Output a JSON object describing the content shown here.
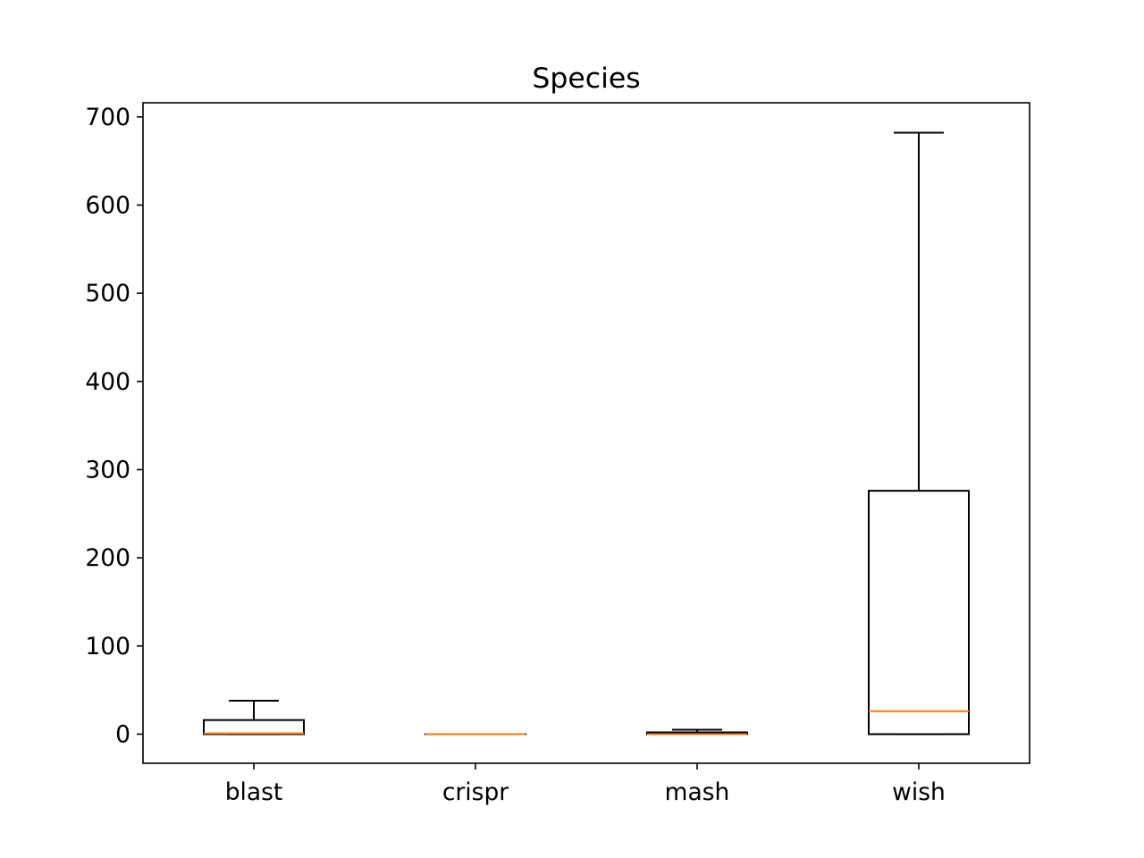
{
  "chart_data": {
    "type": "box",
    "title": "Species",
    "xlabel": "",
    "ylabel": "",
    "categories": [
      "blast",
      "crispr",
      "mash",
      "wish"
    ],
    "boxes": [
      {
        "name": "blast",
        "whisker_low": 0,
        "q1": 0,
        "median": 1,
        "q3": 16,
        "whisker_high": 38
      },
      {
        "name": "crispr",
        "whisker_low": 0,
        "q1": 0,
        "median": 0,
        "q3": 0,
        "whisker_high": 0
      },
      {
        "name": "mash",
        "whisker_low": 0,
        "q1": 0,
        "median": 0,
        "q3": 2,
        "whisker_high": 5
      },
      {
        "name": "wish",
        "whisker_low": 0,
        "q1": 0,
        "median": 26,
        "q3": 276,
        "whisker_high": 682
      }
    ],
    "yticks": [
      0,
      100,
      200,
      300,
      400,
      500,
      600,
      700
    ],
    "ylim": [
      -33,
      716
    ],
    "grid": false,
    "colors": {
      "box": "#000000",
      "median": "#ff7f0e",
      "axes": "#000000",
      "background": "#ffffff"
    }
  }
}
